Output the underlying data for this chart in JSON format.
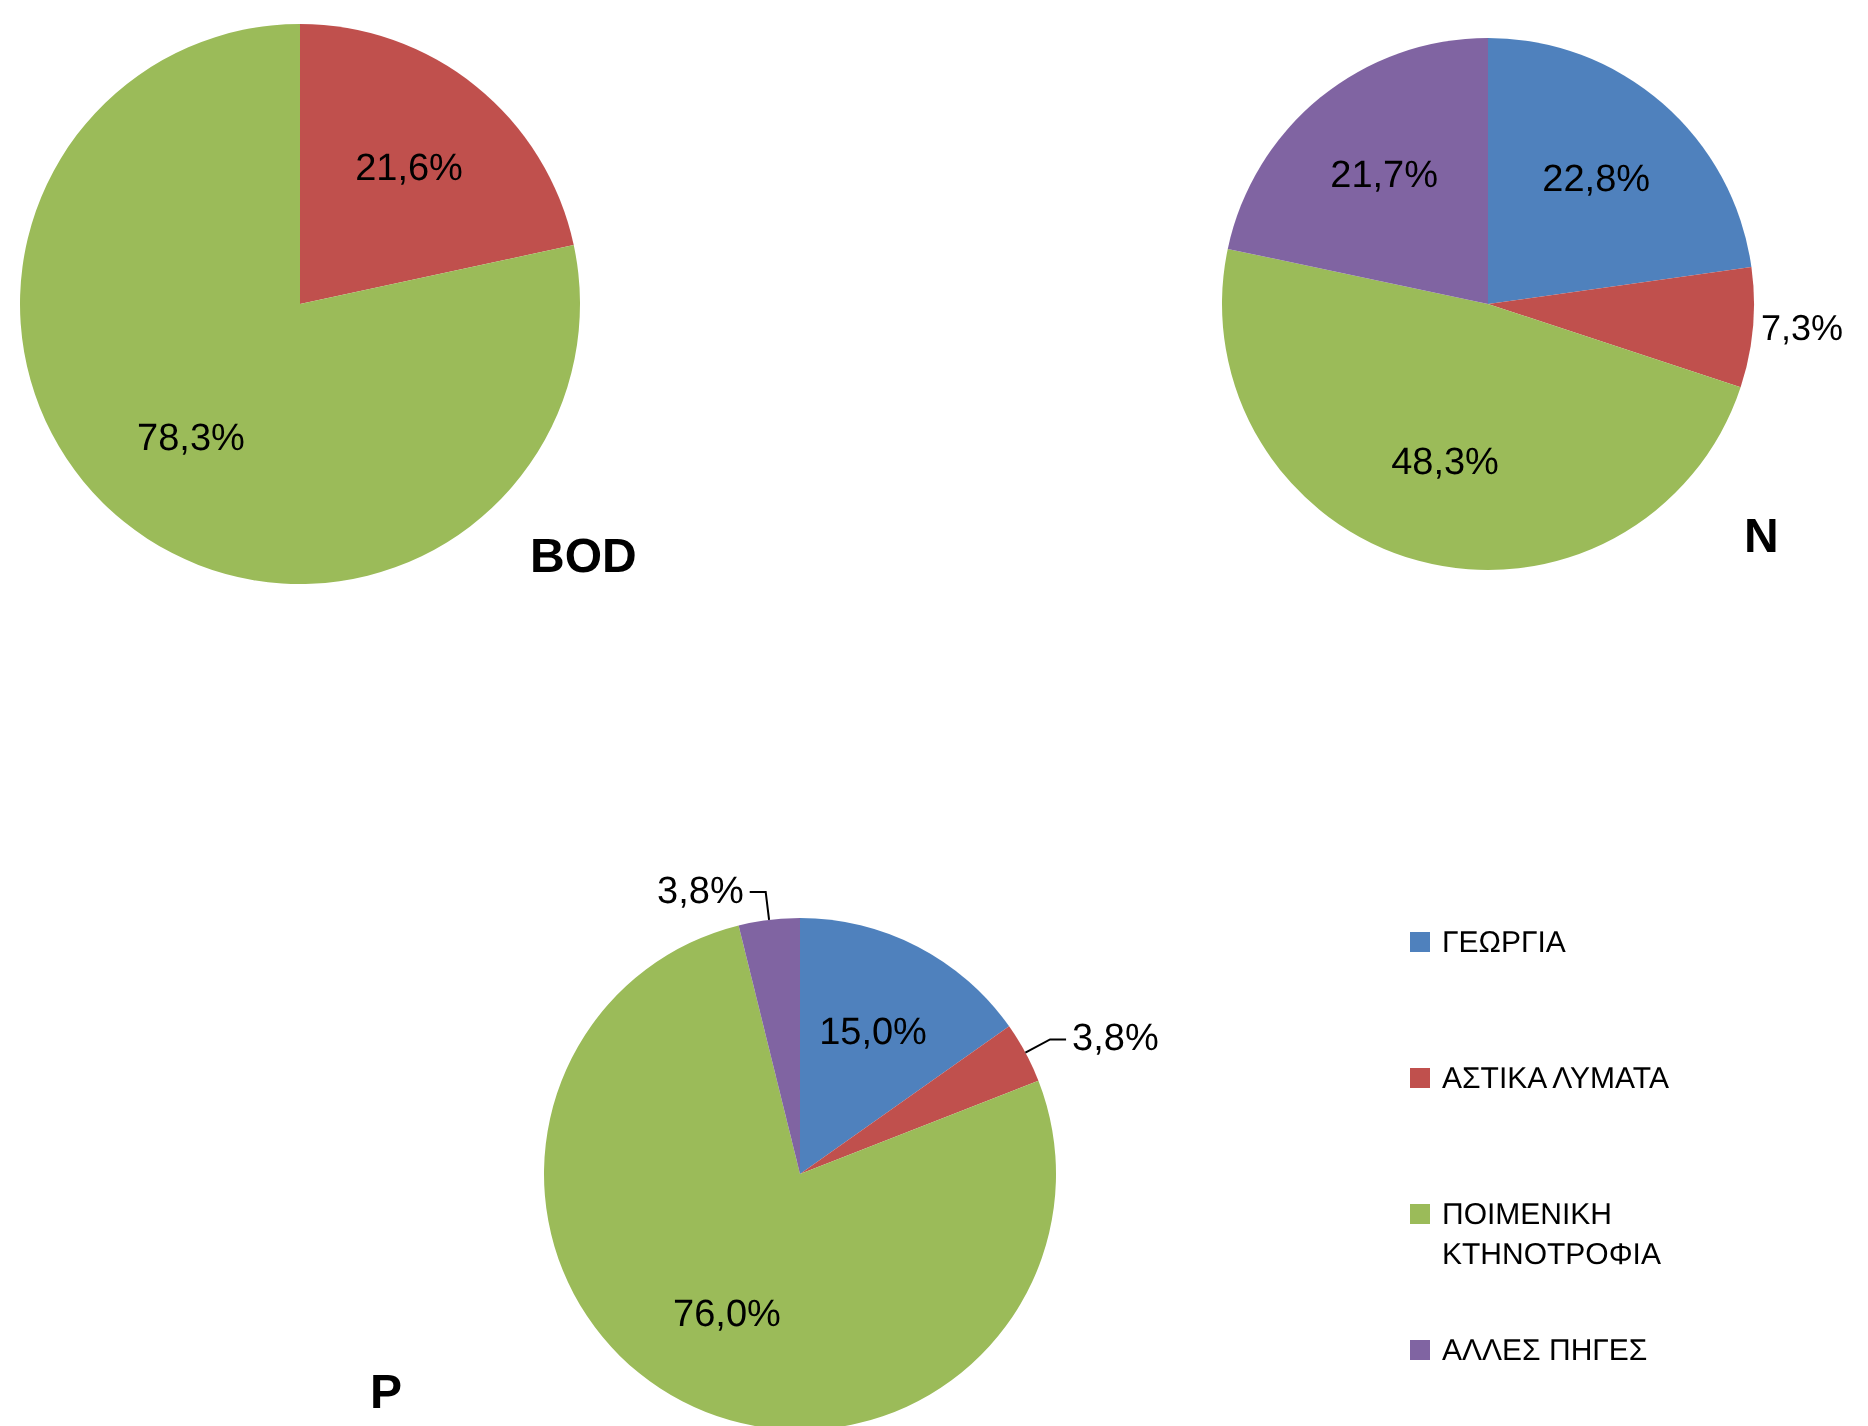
{
  "chart_data": [
    {
      "type": "pie",
      "title": "BOD",
      "categories": [
        null,
        null
      ],
      "values": [
        21.6,
        78.3
      ],
      "colors": [
        "#c0504d",
        "#9bbb59"
      ],
      "value_labels": [
        "21,6%",
        "78,3%"
      ],
      "legend": false
    },
    {
      "type": "pie",
      "title": "N",
      "categories": [
        null,
        null,
        null,
        null
      ],
      "values": [
        22.8,
        7.3,
        48.3,
        21.7
      ],
      "colors": [
        "#4f81bd",
        "#c0504d",
        "#9bbb59",
        "#8064a2"
      ],
      "value_labels": [
        "22,8%",
        "7,3%",
        "48,3%",
        "21,7%"
      ],
      "legend": false
    },
    {
      "type": "pie",
      "title": "P",
      "categories": [
        "ΓΕΩΡΓΙΑ",
        "ΑΣΤΙΚΑ ΛΥΜΑΤΑ",
        "ΠΟΙΜΕΝΙΚΗ ΚΤΗΝΟΤΡΟΦΙΑ",
        "ΑΛΛΕΣ ΠΗΓΕΣ"
      ],
      "values": [
        15.0,
        3.8,
        76.0,
        3.8
      ],
      "colors": [
        "#4f81bd",
        "#c0504d",
        "#9bbb59",
        "#8064a2"
      ],
      "value_labels": [
        "15,0%",
        "3,8%",
        "76,0%",
        "3,8%"
      ],
      "legend": "right"
    }
  ]
}
